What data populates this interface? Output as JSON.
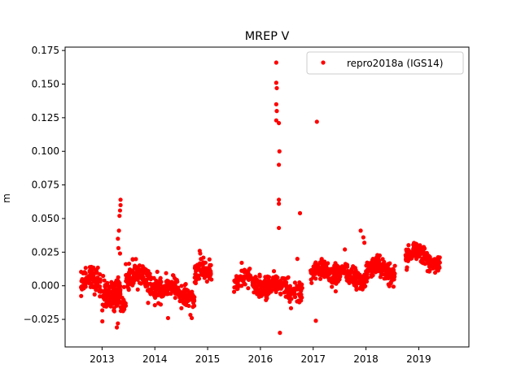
{
  "chart_data": {
    "type": "scatter",
    "title": "MREP V",
    "xlabel": "",
    "ylabel": "m",
    "xlim": [
      2012.3,
      2019.95
    ],
    "ylim": [
      -0.0455,
      0.1775
    ],
    "xticks": [
      2013,
      2014,
      2015,
      2016,
      2017,
      2018,
      2019
    ],
    "xtick_labels": [
      "2013",
      "2014",
      "2015",
      "2016",
      "2017",
      "2018",
      "2019"
    ],
    "yticks": [
      -0.025,
      0.0,
      0.025,
      0.05,
      0.075,
      0.1,
      0.125,
      0.15,
      0.175
    ],
    "ytick_labels": [
      "−0.025",
      "0.000",
      "0.025",
      "0.050",
      "0.075",
      "0.100",
      "0.125",
      "0.150",
      "0.175"
    ],
    "grid": false,
    "legend_position": "top-right",
    "series": [
      {
        "name": "repro2018a (IGS14)",
        "color": "#ff0000",
        "marker": "circle",
        "segments": [
          {
            "start": 2012.6,
            "end": 2013.35,
            "base": 0.0,
            "amp": 0.006,
            "noise": 0.008,
            "n": 170
          },
          {
            "start": 2013.0,
            "end": 2013.45,
            "base": -0.012,
            "amp": 0.004,
            "noise": 0.007,
            "n": 90
          },
          {
            "start": 2013.45,
            "end": 2014.15,
            "base": 0.003,
            "amp": 0.006,
            "noise": 0.008,
            "n": 170
          },
          {
            "start": 2014.15,
            "end": 2014.75,
            "base": -0.006,
            "amp": 0.005,
            "noise": 0.007,
            "n": 140
          },
          {
            "start": 2014.75,
            "end": 2015.08,
            "base": 0.008,
            "amp": 0.004,
            "noise": 0.006,
            "n": 80
          },
          {
            "start": 2015.5,
            "end": 2016.3,
            "base": 0.002,
            "amp": 0.004,
            "noise": 0.006,
            "n": 170
          },
          {
            "start": 2016.05,
            "end": 2016.8,
            "base": -0.001,
            "amp": 0.004,
            "noise": 0.007,
            "n": 130
          },
          {
            "start": 2016.95,
            "end": 2017.5,
            "base": 0.008,
            "amp": 0.004,
            "noise": 0.006,
            "n": 120
          },
          {
            "start": 2017.35,
            "end": 2018.0,
            "base": 0.007,
            "amp": 0.004,
            "noise": 0.006,
            "n": 150
          },
          {
            "start": 2018.0,
            "end": 2018.55,
            "base": 0.011,
            "amp": 0.004,
            "noise": 0.006,
            "n": 140
          },
          {
            "start": 2018.75,
            "end": 2019.4,
            "base": 0.021,
            "amp": 0.005,
            "noise": 0.005,
            "n": 170
          }
        ],
        "outliers": [
          {
            "x": 2013.3,
            "y": 0.035
          },
          {
            "x": 2013.32,
            "y": 0.041
          },
          {
            "x": 2013.33,
            "y": 0.052
          },
          {
            "x": 2013.34,
            "y": 0.056
          },
          {
            "x": 2013.35,
            "y": 0.06
          },
          {
            "x": 2013.35,
            "y": 0.064
          },
          {
            "x": 2013.31,
            "y": 0.028
          },
          {
            "x": 2013.34,
            "y": 0.024
          },
          {
            "x": 2013.28,
            "y": -0.031
          },
          {
            "x": 2013.3,
            "y": -0.028
          },
          {
            "x": 2016.3,
            "y": 0.166
          },
          {
            "x": 2016.3,
            "y": 0.151
          },
          {
            "x": 2016.31,
            "y": 0.147
          },
          {
            "x": 2016.3,
            "y": 0.135
          },
          {
            "x": 2016.31,
            "y": 0.13
          },
          {
            "x": 2016.3,
            "y": 0.123
          },
          {
            "x": 2016.35,
            "y": 0.121
          },
          {
            "x": 2016.36,
            "y": 0.1
          },
          {
            "x": 2016.35,
            "y": 0.09
          },
          {
            "x": 2016.35,
            "y": 0.064
          },
          {
            "x": 2016.35,
            "y": 0.061
          },
          {
            "x": 2016.35,
            "y": 0.043
          },
          {
            "x": 2016.37,
            "y": -0.035
          },
          {
            "x": 2016.75,
            "y": 0.054
          },
          {
            "x": 2016.7,
            "y": 0.02
          },
          {
            "x": 2017.07,
            "y": 0.122
          },
          {
            "x": 2017.05,
            "y": -0.026
          },
          {
            "x": 2017.9,
            "y": 0.041
          },
          {
            "x": 2017.95,
            "y": 0.036
          },
          {
            "x": 2017.97,
            "y": 0.032
          },
          {
            "x": 2017.6,
            "y": 0.027
          },
          {
            "x": 2014.85,
            "y": 0.026
          },
          {
            "x": 2014.86,
            "y": 0.024
          },
          {
            "x": 2014.25,
            "y": -0.024
          },
          {
            "x": 2014.7,
            "y": -0.024
          }
        ]
      }
    ]
  }
}
